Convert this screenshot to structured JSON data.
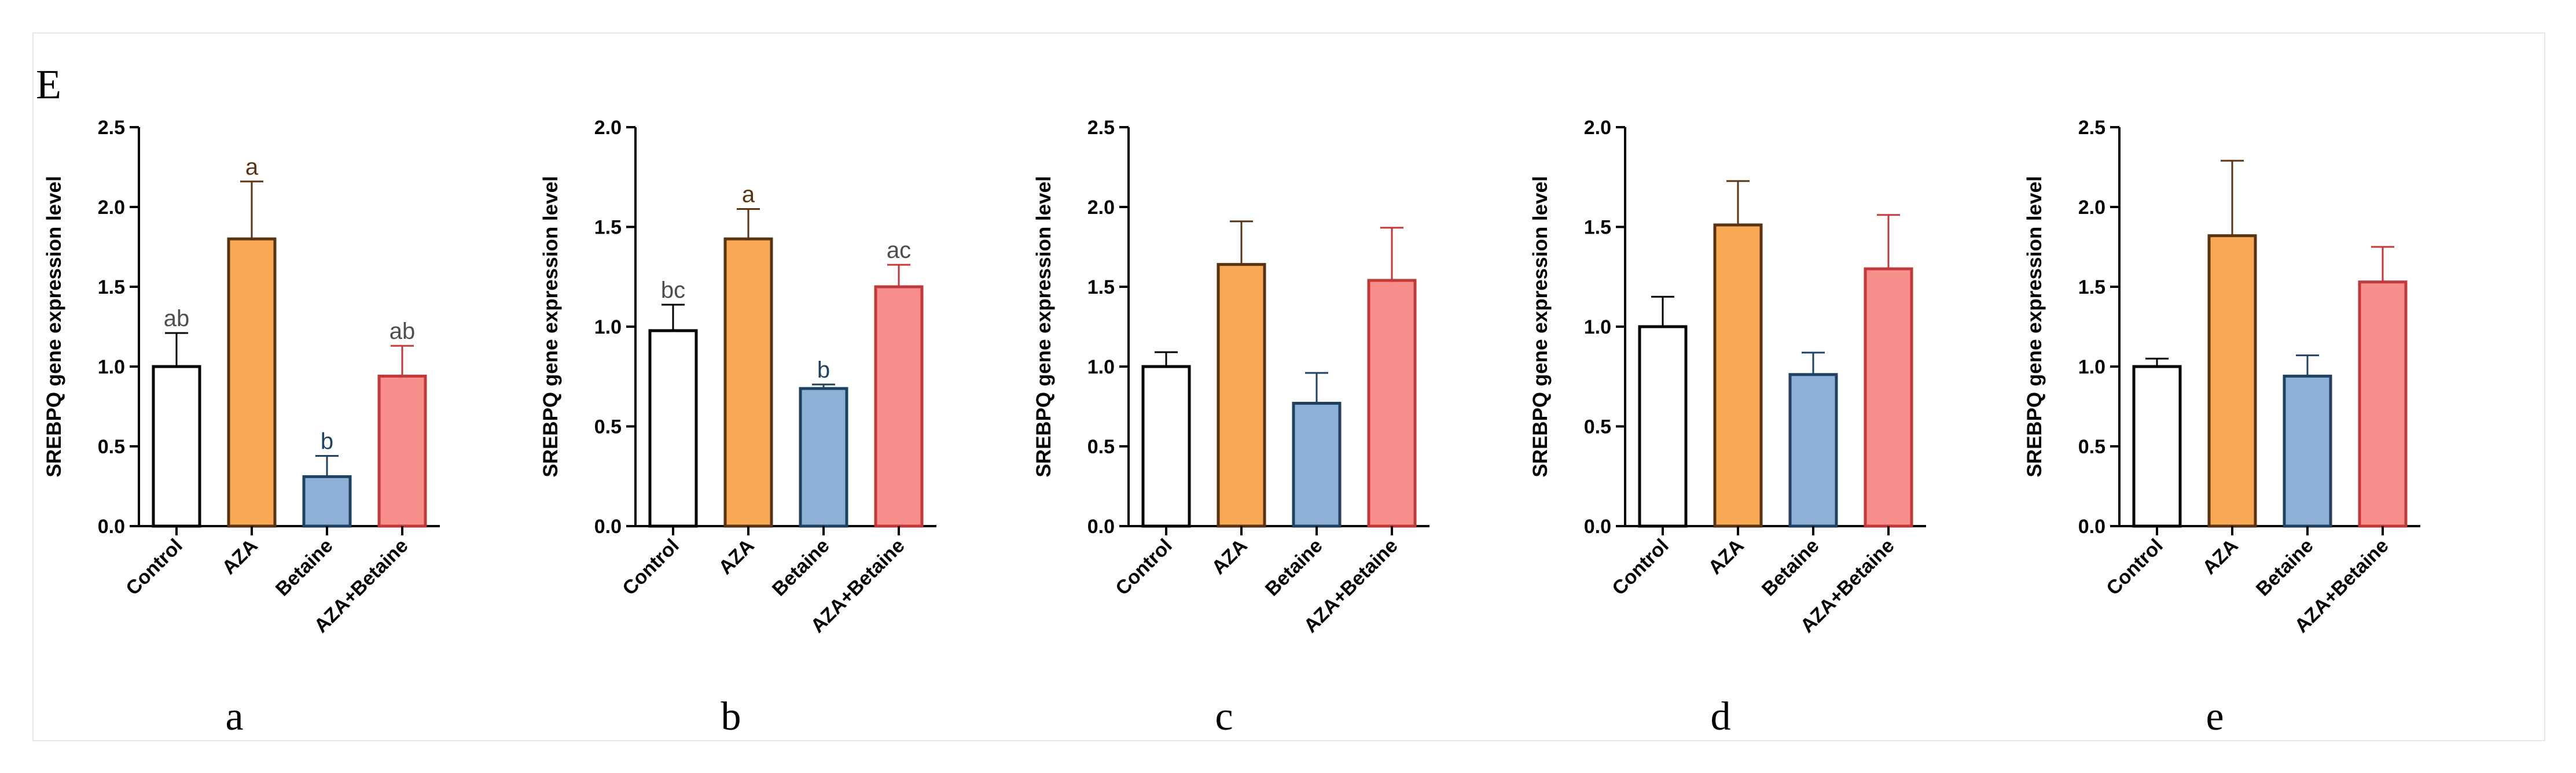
{
  "figure_label": "E",
  "styles": {
    "bar_fills": [
      "#ffffff",
      "#f7a955",
      "#8fb0d6",
      "#f98f8c"
    ],
    "bar_strokes": [
      "#000000",
      "#5a3412",
      "#1f4263",
      "#c2393a"
    ],
    "letter_colors": [
      "#4d4d4d",
      "#5a3412",
      "#1f4263",
      "#4d4d4d"
    ]
  },
  "chart_data": [
    {
      "type": "bar",
      "panel": "a",
      "categories": [
        "Control",
        "AZA",
        "Betaine",
        "AZA+Betaine"
      ],
      "values": [
        1.0,
        1.8,
        0.31,
        0.94
      ],
      "errors": [
        0.21,
        0.36,
        0.13,
        0.19
      ],
      "letters": [
        "ab",
        "a",
        "b",
        "ab"
      ],
      "ylabel": "SREBPQ gene expression level",
      "ylim": [
        0,
        2.5
      ],
      "yticks": [
        "0.0",
        "0.5",
        "1.0",
        "1.5",
        "2.0",
        "2.5"
      ]
    },
    {
      "type": "bar",
      "panel": "b",
      "categories": [
        "Control",
        "AZA",
        "Betaine",
        "AZA+Betaine"
      ],
      "values": [
        0.98,
        1.44,
        0.69,
        1.2
      ],
      "errors": [
        0.13,
        0.15,
        0.02,
        0.11
      ],
      "letters": [
        "bc",
        "a",
        "b",
        "ac"
      ],
      "ylabel": "SREBPQ gene expression level",
      "ylim": [
        0,
        2.0
      ],
      "yticks": [
        "0.0",
        "0.5",
        "1.0",
        "1.5",
        "2.0"
      ]
    },
    {
      "type": "bar",
      "panel": "c",
      "categories": [
        "Control",
        "AZA",
        "Betaine",
        "AZA+Betaine"
      ],
      "values": [
        1.0,
        1.64,
        0.77,
        1.54
      ],
      "errors": [
        0.09,
        0.27,
        0.19,
        0.33
      ],
      "letters": [
        "",
        "",
        "",
        ""
      ],
      "ylabel": "SREBPQ gene expression level",
      "ylim": [
        0,
        2.5
      ],
      "yticks": [
        "0.0",
        "0.5",
        "1.0",
        "1.5",
        "2.0",
        "2.5"
      ]
    },
    {
      "type": "bar",
      "panel": "d",
      "categories": [
        "Control",
        "AZA",
        "Betaine",
        "AZA+Betaine"
      ],
      "values": [
        1.0,
        1.51,
        0.76,
        1.29
      ],
      "errors": [
        0.15,
        0.22,
        0.11,
        0.27
      ],
      "letters": [
        "",
        "",
        "",
        ""
      ],
      "ylabel": "SREBPQ gene expression level",
      "ylim": [
        0,
        2.0
      ],
      "yticks": [
        "0.0",
        "0.5",
        "1.0",
        "1.5",
        "2.0"
      ]
    },
    {
      "type": "bar",
      "panel": "e",
      "categories": [
        "Control",
        "AZA",
        "Betaine",
        "AZA+Betaine"
      ],
      "values": [
        1.0,
        1.82,
        0.94,
        1.53
      ],
      "errors": [
        0.05,
        0.47,
        0.13,
        0.22
      ],
      "letters": [
        "",
        "",
        "",
        ""
      ],
      "ylabel": "SREBPQ gene expression level",
      "ylim": [
        0,
        2.5
      ],
      "yticks": [
        "0.0",
        "0.5",
        "1.0",
        "1.5",
        "2.0",
        "2.5"
      ]
    }
  ]
}
